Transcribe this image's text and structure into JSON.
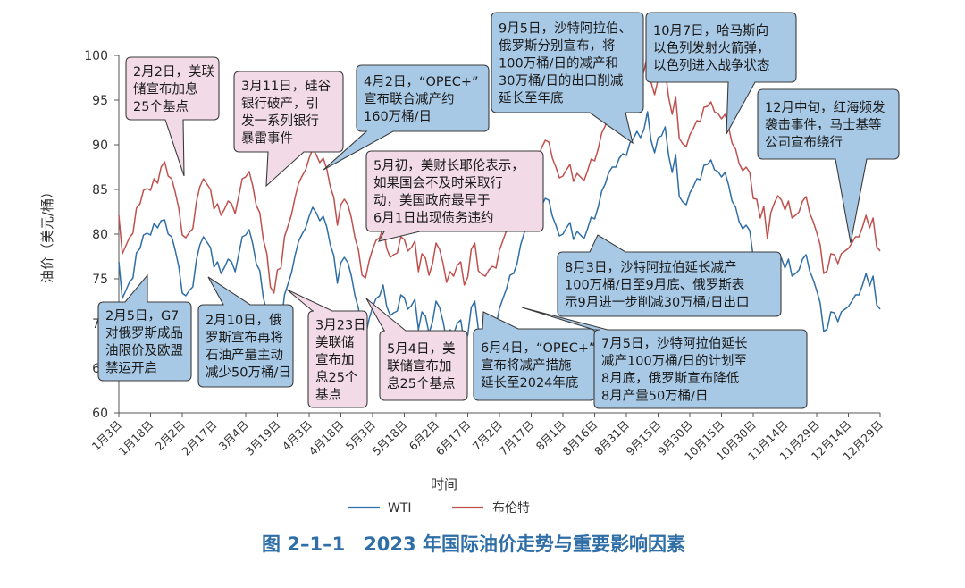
{
  "chart_data": {
    "type": "line",
    "title": "图 2–1–1　2023 年国际油价走势与重要影响因素",
    "xlabel": "时间",
    "ylabel": "油价（美元/桶）",
    "ylim": [
      60,
      100
    ],
    "yticks": [
      60,
      65,
      70,
      75,
      80,
      85,
      90,
      95,
      100
    ],
    "xticks": [
      "1月3日",
      "1月18日",
      "2月2日",
      "2月17日",
      "3月4日",
      "3月19日",
      "4月3日",
      "4月18日",
      "5月3日",
      "5月18日",
      "6月2日",
      "6月17日",
      "7月2日",
      "7月17日",
      "8月1日",
      "8月16日",
      "8月31日",
      "9月15日",
      "9月30日",
      "10月15日",
      "10月30日",
      "11月14日",
      "11月29日",
      "12月14日",
      "12月29日"
    ],
    "legend_position": "bottom",
    "series": [
      {
        "name": "WTI",
        "color": "#2f6ea6",
        "values": [
          76.9,
          72.8,
          73.7,
          74.6,
          75.1,
          77.9,
          78.4,
          79.9,
          80.1,
          79.9,
          81.2,
          80.7,
          81.5,
          81.6,
          80.0,
          79.7,
          78.2,
          76.4,
          73.4,
          73.1,
          73.7,
          74.1,
          77.1,
          78.8,
          79.7,
          79.1,
          78.5,
          76.3,
          76.9,
          75.6,
          76.3,
          77.2,
          76.9,
          75.8,
          77.7,
          79.7,
          79.9,
          80.5,
          78.9,
          76.7,
          75.9,
          72.9,
          71.3,
          67.6,
          66.9,
          69.5,
          69.7,
          73.2,
          74.4,
          75.7,
          77.6,
          79.2,
          80.0,
          80.7,
          82.0,
          83.0,
          82.4,
          81.5,
          82.0,
          80.8,
          78.8,
          77.6,
          74.5,
          76.8,
          77.4,
          76.8,
          75.3,
          73.1,
          71.7,
          68.9,
          68.6,
          70.5,
          71.8,
          72.8,
          73.1,
          74.3,
          71.9,
          70.9,
          71.2,
          71.4,
          73.2,
          72.9,
          71.6,
          72.0,
          72.7,
          69.3,
          71.3,
          70.8,
          68.9,
          70.2,
          72.5,
          71.8,
          70.2,
          68.1,
          69.3,
          68.8,
          70.0,
          70.4,
          67.8,
          68.7,
          71.8,
          72.5,
          69.4,
          69.0,
          68.8,
          69.5,
          69.9,
          69.7,
          71.7,
          72.8,
          73.9,
          75.4,
          75.6,
          76.7,
          78.8,
          80.1,
          81.4,
          81.5,
          82.8,
          82.0,
          83.2,
          84.0,
          83.8,
          82.0,
          81.0,
          79.8,
          80.0,
          80.7,
          81.3,
          79.4,
          80.3,
          79.9,
          79.5,
          80.6,
          81.9,
          81.7,
          83.0,
          84.8,
          85.6,
          86.9,
          87.5,
          87.5,
          88.5,
          89.0,
          88.8,
          90.2,
          90.7,
          91.5,
          90.8,
          91.7,
          93.7,
          90.5,
          89.1,
          90.8,
          91.0,
          92.0,
          88.8,
          86.9,
          88.9,
          84.2,
          83.6,
          83.3,
          84.6,
          85.3,
          86.2,
          86.1,
          87.7,
          87.8,
          88.3,
          87.2,
          87.0,
          86.4,
          86.9,
          85.5,
          83.7,
          83.0,
          81.4,
          80.6,
          81.0,
          80.4,
          77.5,
          77.4,
          75.3,
          76.6,
          73.0,
          75.9,
          77.0,
          77.8,
          77.3,
          76.2,
          77.2,
          75.3,
          75.6,
          76.0,
          77.2,
          77.7,
          75.9,
          74.9,
          73.7,
          72.3,
          69.1,
          69.4,
          71.3,
          71.2,
          70.2,
          71.3,
          71.6,
          71.9,
          72.5,
          73.2,
          73.2,
          74.3,
          75.6,
          74.2,
          75.3,
          72.1,
          71.6
        ]
      },
      {
        "name": "布伦特",
        "color": "#c0504d",
        "values": [
          82.1,
          77.8,
          78.7,
          79.6,
          80.1,
          82.9,
          83.4,
          84.9,
          85.1,
          84.9,
          86.2,
          85.7,
          87.5,
          88.1,
          86.5,
          86.2,
          84.7,
          82.9,
          79.9,
          79.6,
          80.2,
          80.6,
          83.6,
          85.3,
          86.2,
          85.6,
          85.0,
          82.8,
          83.4,
          82.1,
          82.8,
          83.7,
          83.4,
          82.3,
          84.2,
          86.2,
          86.4,
          87.0,
          85.4,
          83.2,
          82.4,
          79.4,
          77.8,
          74.1,
          73.4,
          76.0,
          76.2,
          79.7,
          80.9,
          82.2,
          84.1,
          85.7,
          86.5,
          87.2,
          88.5,
          89.5,
          88.9,
          88.0,
          88.5,
          87.3,
          85.3,
          84.1,
          81.0,
          83.3,
          83.9,
          83.3,
          81.8,
          79.6,
          78.2,
          75.4,
          75.1,
          77.0,
          78.3,
          79.3,
          79.6,
          80.8,
          78.4,
          77.4,
          77.7,
          77.9,
          79.7,
          79.4,
          78.1,
          78.5,
          79.2,
          75.8,
          77.8,
          77.3,
          75.4,
          76.7,
          79.0,
          78.3,
          76.7,
          74.6,
          75.8,
          75.3,
          76.5,
          76.9,
          74.3,
          75.2,
          78.3,
          79.0,
          75.9,
          75.5,
          75.3,
          76.0,
          76.4,
          76.2,
          78.2,
          79.3,
          80.4,
          81.9,
          82.1,
          83.2,
          85.3,
          86.6,
          87.9,
          88.0,
          89.3,
          88.5,
          89.7,
          90.5,
          90.3,
          88.5,
          87.5,
          86.3,
          86.5,
          87.2,
          87.8,
          85.9,
          86.8,
          86.4,
          86.0,
          87.1,
          88.4,
          88.2,
          89.5,
          91.3,
          92.1,
          93.4,
          94.0,
          94.0,
          95.0,
          95.5,
          95.3,
          96.7,
          97.2,
          98.0,
          97.3,
          98.2,
          100.2,
          97.0,
          95.6,
          97.3,
          97.5,
          98.5,
          95.3,
          93.4,
          95.4,
          90.7,
          90.1,
          89.8,
          91.1,
          91.8,
          92.7,
          92.6,
          94.2,
          94.3,
          94.8,
          93.7,
          93.5,
          92.9,
          93.4,
          92.0,
          90.2,
          89.5,
          87.9,
          87.1,
          87.5,
          86.9,
          84.0,
          83.9,
          81.8,
          83.1,
          79.5,
          82.4,
          83.5,
          84.3,
          83.8,
          82.7,
          83.7,
          81.8,
          82.1,
          82.5,
          83.7,
          84.2,
          82.4,
          81.4,
          80.2,
          78.8,
          75.6,
          75.9,
          77.8,
          77.7,
          76.7,
          77.8,
          78.1,
          78.4,
          79.0,
          79.7,
          79.7,
          80.8,
          82.1,
          80.7,
          81.8,
          78.6,
          78.1
        ]
      }
    ],
    "annotations": [
      {
        "id": "feb2",
        "lines": [
          "2月2日，美联",
          "储宣布加息",
          "25个基点"
        ],
        "style": "pink"
      },
      {
        "id": "feb5",
        "lines": [
          "2月5日，G7",
          "对俄罗斯成品",
          "油限价及欧盟",
          "禁运开启"
        ],
        "style": "blue"
      },
      {
        "id": "feb10",
        "lines": [
          "2月10日，俄",
          "罗斯宣布再将",
          "石油产量主动",
          "减少50万桶/日"
        ],
        "style": "blue"
      },
      {
        "id": "mar11",
        "lines": [
          "3月11日，硅谷",
          "银行破产，引",
          "发一系列银行",
          "暴雷事件"
        ],
        "style": "pink"
      },
      {
        "id": "mar23",
        "lines": [
          "3月23日",
          "美联储",
          "宣布加",
          "息25个",
          "基点"
        ],
        "style": "pink"
      },
      {
        "id": "apr2",
        "lines": [
          "4月2日，“OPEC+”",
          "宣布联合减产约",
          "160万桶/日"
        ],
        "style": "blue"
      },
      {
        "id": "may_early",
        "lines": [
          "5月初，美财长耶伦表示，",
          "如果国会不及时采取行",
          "动，美国政府最早于",
          "6月1日出现债务违约"
        ],
        "style": "pink"
      },
      {
        "id": "may4",
        "lines": [
          "5月4日，美",
          "联储宣布加",
          "息25个基点"
        ],
        "style": "pink"
      },
      {
        "id": "jun4",
        "lines": [
          "6月4日，“OPEC+”",
          "宣布将减产措施",
          "延长至2024年底"
        ],
        "style": "blue"
      },
      {
        "id": "jul5",
        "lines": [
          "7月5日，沙特阿拉伯延长",
          "减产100万桶/日的计划至",
          "8月底，俄罗斯宣布降低",
          "8月产量50万桶/日"
        ],
        "style": "blue"
      },
      {
        "id": "aug3",
        "lines": [
          "8月3日，沙特阿拉伯延长减产",
          "100万桶/日至9月底、俄罗斯表",
          "示9月进一步削减30万桶/日出口"
        ],
        "style": "blue"
      },
      {
        "id": "sep5",
        "lines": [
          "9月5日，沙特阿拉伯、",
          "俄罗斯分别宣布，将",
          "100万桶/日的减产和",
          "30万桶/日的出口削减",
          "延长至年底"
        ],
        "style": "blue"
      },
      {
        "id": "oct7",
        "lines": [
          "10月7日，哈马斯向",
          "以色列发射火箭弹，",
          "以色列进入战争状态"
        ],
        "style": "blue"
      },
      {
        "id": "dec_mid",
        "lines": [
          "12月中旬，红海频发",
          "袭击事件，马士基等",
          "公司宣布绕行"
        ],
        "style": "blue"
      }
    ]
  }
}
